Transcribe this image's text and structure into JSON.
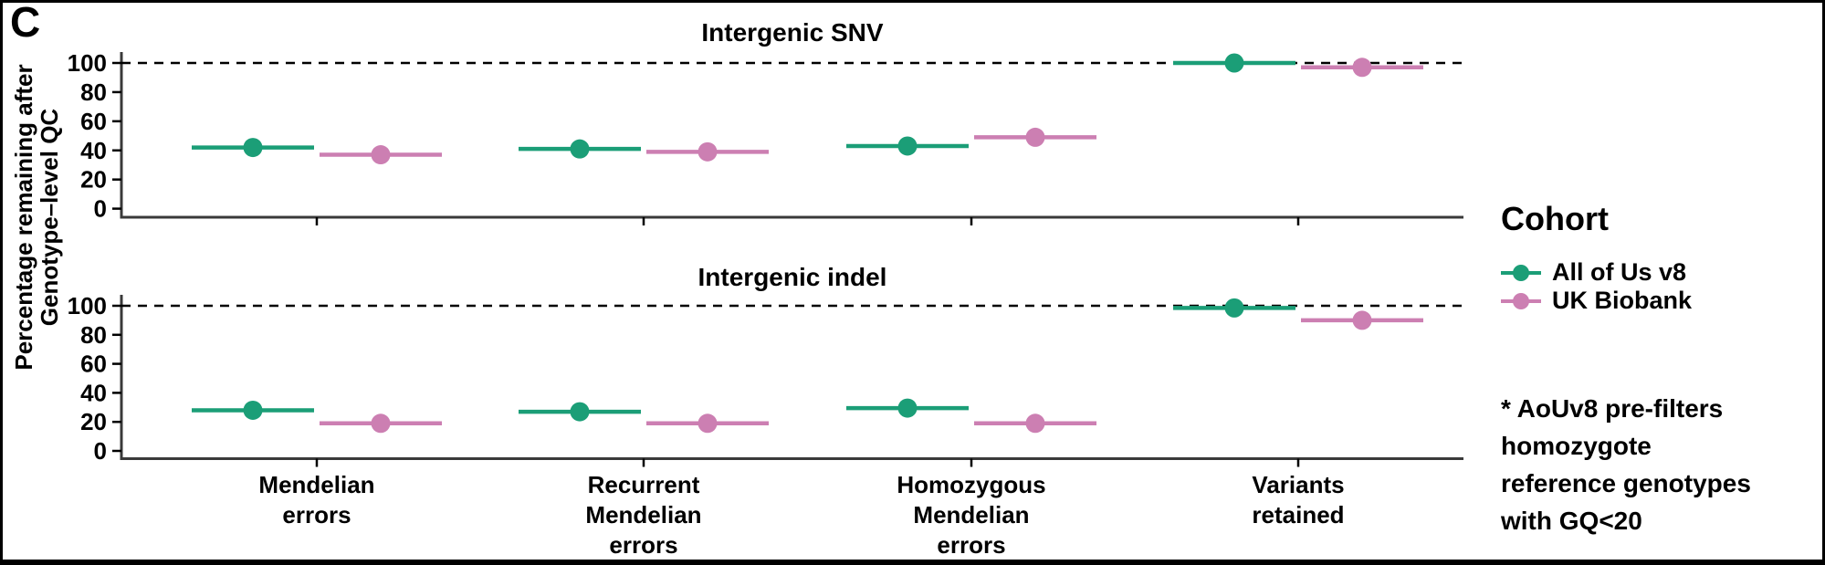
{
  "panel_label": "C",
  "y_axis_title": {
    "line1": "Percentage remaining after",
    "line2": "Genotype–level QC"
  },
  "legend": {
    "title": "Cohort",
    "items": [
      {
        "label": "All of Us v8",
        "color": "#1B9E77"
      },
      {
        "label": "UK Biobank",
        "color": "#CC7FB2"
      }
    ]
  },
  "footnote": {
    "lines": [
      "* AoUv8 pre-filters",
      "homozygote",
      "reference genotypes",
      "with GQ<20"
    ]
  },
  "chart_data": {
    "type": "scatter",
    "subtype": "pointrange-dodged",
    "ylabel": "Percentage remaining after Genotype-level QC",
    "ylim": [
      0,
      100
    ],
    "y_ticks": [
      0,
      20,
      40,
      60,
      80,
      100
    ],
    "reference_line_y": 100,
    "reference_line_style": "dashed",
    "grid": "off",
    "legend_position": "right",
    "categories": [
      [
        "Mendelian",
        "errors"
      ],
      [
        "Recurrent",
        "Mendelian",
        "errors"
      ],
      [
        "Homozygous",
        "Mendelian",
        "errors"
      ],
      [
        "Variants",
        "retained"
      ]
    ],
    "facets": [
      {
        "title": "Intergenic SNV",
        "series": [
          {
            "name": "All of Us v8",
            "color": "#1B9E77",
            "values": [
              42,
              41,
              43,
              100
            ]
          },
          {
            "name": "UK Biobank",
            "color": "#CC7FB2",
            "values": [
              37,
              39,
              49,
              97
            ]
          }
        ]
      },
      {
        "title": "Intergenic indel",
        "series": [
          {
            "name": "All of Us v8",
            "color": "#1B9E77",
            "values": [
              28,
              27,
              29.5,
              98.5
            ]
          },
          {
            "name": "UK Biobank",
            "color": "#CC7FB2",
            "values": [
              19,
              19,
              19,
              90
            ]
          }
        ]
      }
    ]
  }
}
